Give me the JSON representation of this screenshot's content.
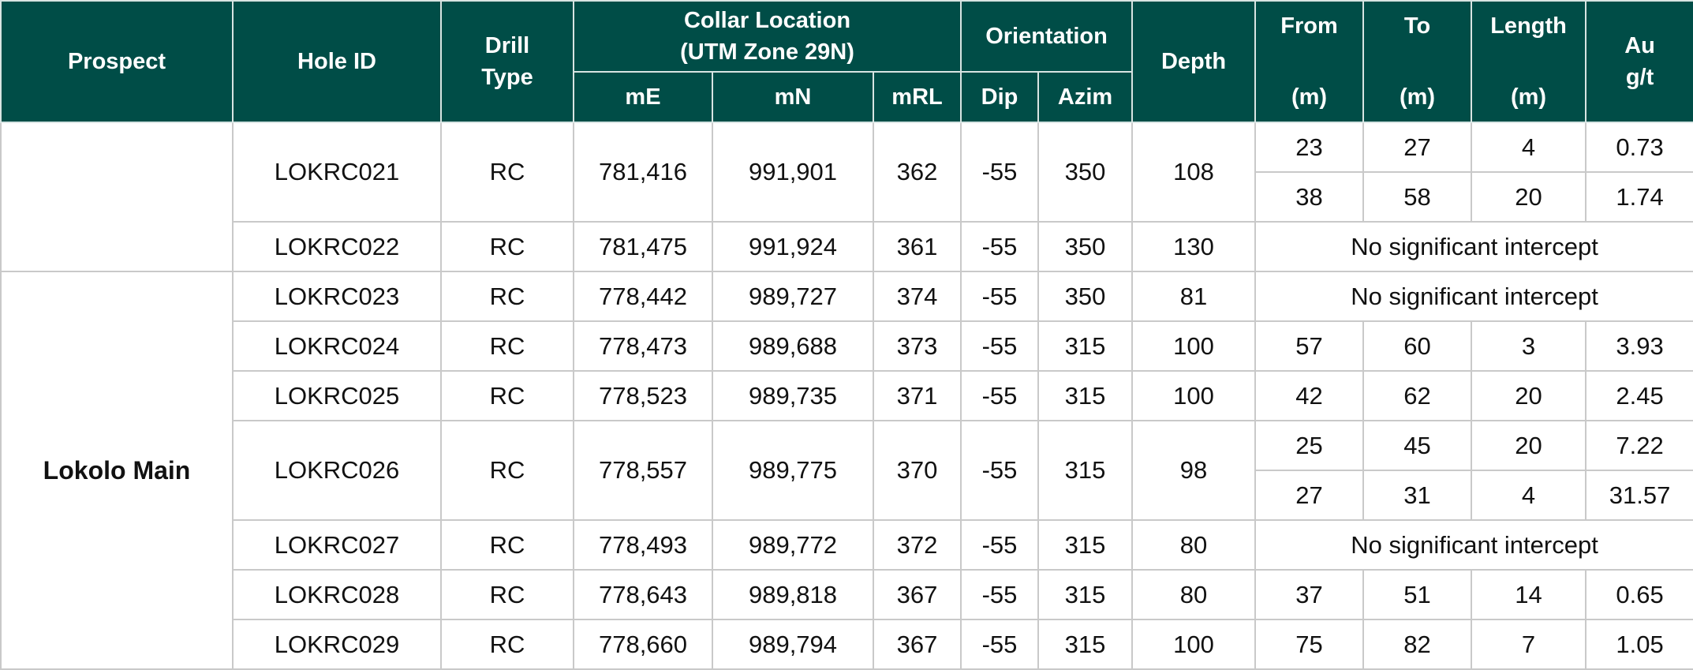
{
  "headers": {
    "prospect": "Prospect",
    "hole_id": "Hole ID",
    "drill_type_line1": "Drill",
    "drill_type_line2": "Type",
    "collar_line1": "Collar Location",
    "collar_line2": "(UTM Zone 29N)",
    "orientation": "Orientation",
    "depth": "Depth",
    "from_line1": "From",
    "from_line2": "(m)",
    "to_line1": "To",
    "to_line2": "(m)",
    "length_line1": "Length",
    "length_line2": "(m)",
    "au_line1": "Au",
    "au_line2": "g/t",
    "me": "mE",
    "mn": "mN",
    "mrl": "mRL",
    "dip": "Dip",
    "azim": "Azim"
  },
  "prospects": {
    "first": "",
    "second": "Lokolo Main"
  },
  "holes": [
    {
      "id": "LOKRC021",
      "type": "RC",
      "me": "781,416",
      "mn": "991,901",
      "mrl": "362",
      "dip": "-55",
      "azim": "350",
      "depth": "108",
      "intercepts": [
        {
          "from": "23",
          "to": "27",
          "length": "4",
          "au": "0.73"
        },
        {
          "from": "38",
          "to": "58",
          "length": "20",
          "au": "1.74"
        }
      ]
    },
    {
      "id": "LOKRC022",
      "type": "RC",
      "me": "781,475",
      "mn": "991,924",
      "mrl": "361",
      "dip": "-55",
      "azim": "350",
      "depth": "130",
      "note": "No significant intercept"
    },
    {
      "id": "LOKRC023",
      "type": "RC",
      "me": "778,442",
      "mn": "989,727",
      "mrl": "374",
      "dip": "-55",
      "azim": "350",
      "depth": "81",
      "note": "No significant intercept"
    },
    {
      "id": "LOKRC024",
      "type": "RC",
      "me": "778,473",
      "mn": "989,688",
      "mrl": "373",
      "dip": "-55",
      "azim": "315",
      "depth": "100",
      "intercepts": [
        {
          "from": "57",
          "to": "60",
          "length": "3",
          "au": "3.93"
        }
      ]
    },
    {
      "id": "LOKRC025",
      "type": "RC",
      "me": "778,523",
      "mn": "989,735",
      "mrl": "371",
      "dip": "-55",
      "azim": "315",
      "depth": "100",
      "intercepts": [
        {
          "from": "42",
          "to": "62",
          "length": "20",
          "au": "2.45"
        }
      ]
    },
    {
      "id": "LOKRC026",
      "type": "RC",
      "me": "778,557",
      "mn": "989,775",
      "mrl": "370",
      "dip": "-55",
      "azim": "315",
      "depth": "98",
      "intercepts": [
        {
          "from": "25",
          "to": "45",
          "length": "20",
          "au": "7.22"
        },
        {
          "from": "27",
          "to": "31",
          "length": "4",
          "au": "31.57"
        }
      ]
    },
    {
      "id": "LOKRC027",
      "type": "RC",
      "me": "778,493",
      "mn": "989,772",
      "mrl": "372",
      "dip": "-55",
      "azim": "315",
      "depth": "80",
      "note": "No significant intercept"
    },
    {
      "id": "LOKRC028",
      "type": "RC",
      "me": "778,643",
      "mn": "989,818",
      "mrl": "367",
      "dip": "-55",
      "azim": "315",
      "depth": "80",
      "intercepts": [
        {
          "from": "37",
          "to": "51",
          "length": "14",
          "au": "0.65"
        }
      ]
    },
    {
      "id": "LOKRC029",
      "type": "RC",
      "me": "778,660",
      "mn": "989,794",
      "mrl": "367",
      "dip": "-55",
      "azim": "315",
      "depth": "100",
      "intercepts": [
        {
          "from": "75",
          "to": "82",
          "length": "7",
          "au": "1.05"
        }
      ]
    }
  ],
  "colors": {
    "header_bg": "#004d47",
    "header_text": "#ffffff",
    "grid": "#c9c9c9"
  }
}
